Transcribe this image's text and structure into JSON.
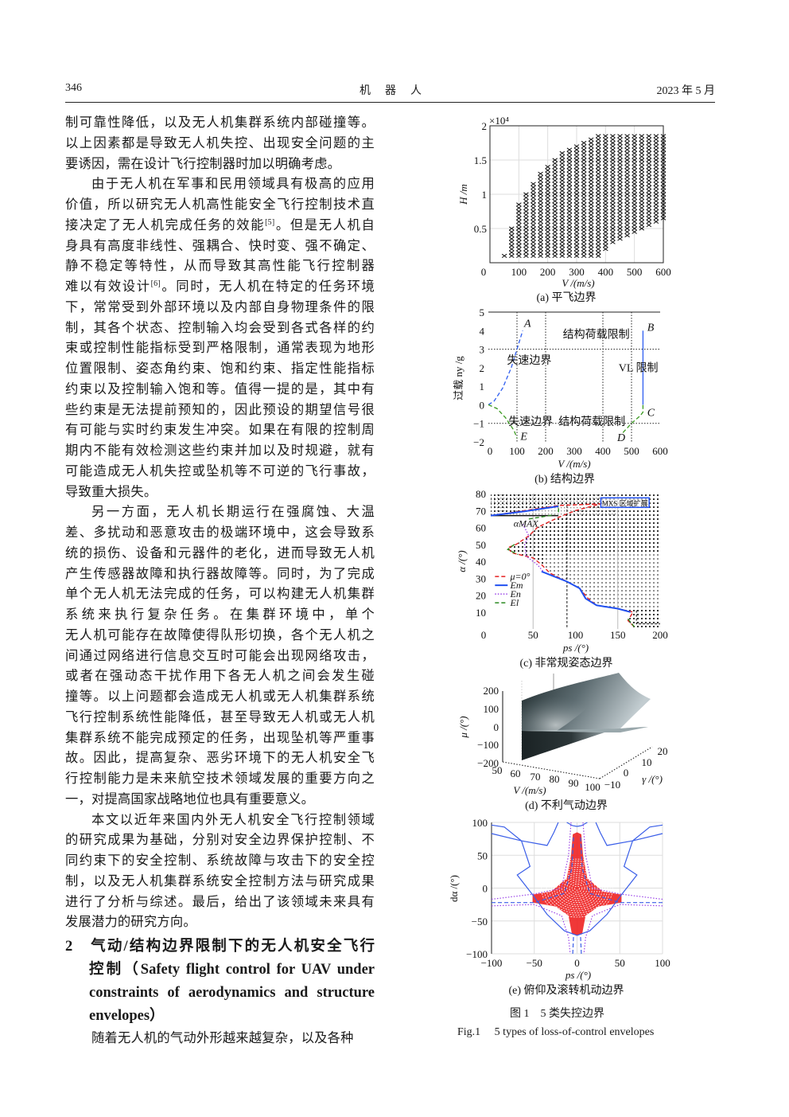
{
  "header": {
    "page_number": "346",
    "journal": "机　器　人",
    "date": "2023 年 5 月"
  },
  "body": {
    "lines": [
      {
        "t": "制可靠性降低，以及无人机集群系统内部碰撞等。"
      },
      {
        "t": "以上因素都是导致无人机失控、出现安全问题的主"
      },
      {
        "t": "要诱因，需在设计飞行控制器时加以明确考虑。",
        "last": true
      },
      {
        "t": "由于无人机在军事和民用领域具有极高的应用",
        "ind": true
      },
      {
        "t": "价值，所以研究无人机高性能安全飞行控制技术直"
      },
      {
        "t": "接决定了无人机完成任务的效能",
        "ref": "[5]",
        "t2": "。但是无人机自"
      },
      {
        "t": "身具有高度非线性、强耦合、快时变、强不确定、"
      },
      {
        "t": "静不稳定等特性，从而导致其高性能飞行控制器"
      },
      {
        "t": "难以有效设计",
        "ref": "[6]",
        "t2": "。同时，无人机在特定的任务环境"
      },
      {
        "t": "下，常常受到外部环境以及内部自身物理条件的限"
      },
      {
        "t": "制，其各个状态、控制输入均会受到各式各样的约"
      },
      {
        "t": "束或控制性能指标受到严格限制，通常表现为地形"
      },
      {
        "t": "位置限制、姿态角约束、饱和约束、指定性能指标"
      },
      {
        "t": "约束以及控制输入饱和等。值得一提的是，其中有"
      },
      {
        "t": "些约束是无法提前预知的，因此预设的期望信号很"
      },
      {
        "t": "有可能与实时约束发生冲突。如果在有限的控制周"
      },
      {
        "t": "期内不能有效检测这些约束并加以及时规避，就有"
      },
      {
        "t": "可能造成无人机失控或坠机等不可逆的飞行事故，"
      },
      {
        "t": "导致重大损失。",
        "last": true
      },
      {
        "t": "另一方面，无人机长期运行在强腐蚀、大温",
        "ind": true
      },
      {
        "t": "差、多扰动和恶意攻击的极端环境中，这会导致系"
      },
      {
        "t": "统的损伤、设备和元器件的老化，进而导致无人机"
      },
      {
        "t": "产生传感器故障和执行器故障等。同时，为了完成"
      },
      {
        "t": "单个无人机无法完成的任务，可以构建无人机集群"
      },
      {
        "t": "系统来执行复杂任务。在集群环境中，单个"
      },
      {
        "t": "无人机可能存在故障使得队形切换，各个无人机之"
      },
      {
        "t": "间通过网络进行信息交互时可能会出现网络攻击，"
      },
      {
        "t": "或者在强动态干扰作用下各无人机之间会发生碰"
      },
      {
        "t": "撞等。以上问题都会造成无人机或无人机集群系统"
      },
      {
        "t": "飞行控制系统性能降低，甚至导致无人机或无人机"
      },
      {
        "t": "集群系统不能完成预定的任务，出现坠机等严重事"
      },
      {
        "t": "故。因此，提高复杂、恶劣环境下的无人机安全飞"
      },
      {
        "t": "行控制能力是未来航空技术领域发展的重要方向之"
      },
      {
        "t": "一，对提高国家战略地位也具有重要意义。",
        "last": true
      },
      {
        "t": "本文以近年来国内外无人机安全飞行控制领域",
        "ind": true
      },
      {
        "t": "的研究成果为基础，分别对安全边界保护控制、不"
      },
      {
        "t": "同约束下的安全控制、系统故障与攻击下的安全控"
      },
      {
        "t": "制，以及无人机集群系统安全控制方法与研究成果"
      },
      {
        "t": "进行了分析与综述。最后，给出了该领域未来具有"
      },
      {
        "t": "发展潜力的研究方向。",
        "last": true
      }
    ],
    "section": {
      "number": "2",
      "lines": [
        "气动/结构边界限制下的无人机安全飞行",
        "控制（Safety flight control for UAV under",
        "constraints of aerodynamics and structure",
        "envelopes）"
      ]
    },
    "after_line": "随着无人机的气动外形越来越复杂，以及各种"
  },
  "figure": {
    "caption_cn": "图 1　5 类失控边界",
    "caption_en": "Fig.1　 5 types of loss-of-control envelopes"
  },
  "chart_data": [
    {
      "id": "a",
      "type": "scatter",
      "subtitle": "(a) 平飞边界",
      "xlabel": "V /(m/s)",
      "ylabel": "H /m",
      "y_multiplier": "×10⁴",
      "xlim": [
        0,
        600
      ],
      "ylim": [
        0,
        20000
      ],
      "xticks": [
        "0",
        "100",
        "200",
        "300",
        "400",
        "500",
        "600"
      ],
      "xtick_values": [
        0,
        100,
        200,
        300,
        400,
        500,
        600
      ],
      "yticks": [
        "0.5",
        "1",
        "1.5",
        "2"
      ],
      "ytick_values": [
        5000,
        10000,
        15000,
        20000
      ],
      "grid": true,
      "marker": "x",
      "h_step": 500,
      "columns": [
        {
          "V": 50,
          "Hmin": 1000,
          "Hmax": 1000
        },
        {
          "V": 75,
          "Hmin": 1000,
          "Hmax": 5000
        },
        {
          "V": 100,
          "Hmin": 1000,
          "Hmax": 8500
        },
        {
          "V": 125,
          "Hmin": 1000,
          "Hmax": 10000
        },
        {
          "V": 150,
          "Hmin": 1000,
          "Hmax": 11500
        },
        {
          "V": 175,
          "Hmin": 1000,
          "Hmax": 13000
        },
        {
          "V": 200,
          "Hmin": 1000,
          "Hmax": 14000
        },
        {
          "V": 225,
          "Hmin": 1000,
          "Hmax": 15000
        },
        {
          "V": 250,
          "Hmin": 1000,
          "Hmax": 16000
        },
        {
          "V": 275,
          "Hmin": 1000,
          "Hmax": 16500
        },
        {
          "V": 300,
          "Hmin": 1000,
          "Hmax": 17000
        },
        {
          "V": 325,
          "Hmin": 1000,
          "Hmax": 17500
        },
        {
          "V": 350,
          "Hmin": 1000,
          "Hmax": 18000
        },
        {
          "V": 375,
          "Hmin": 1000,
          "Hmax": 18500
        },
        {
          "V": 400,
          "Hmin": 2000,
          "Hmax": 18500
        },
        {
          "V": 425,
          "Hmin": 3000,
          "Hmax": 18500
        },
        {
          "V": 450,
          "Hmin": 3500,
          "Hmax": 18500
        },
        {
          "V": 475,
          "Hmin": 4000,
          "Hmax": 18500
        },
        {
          "V": 500,
          "Hmin": 4500,
          "Hmax": 18500
        },
        {
          "V": 525,
          "Hmin": 5000,
          "Hmax": 18500
        },
        {
          "V": 550,
          "Hmin": 5500,
          "Hmax": 18500
        },
        {
          "V": 575,
          "Hmin": 6000,
          "Hmax": 18500
        },
        {
          "V": 600,
          "Hmin": 6500,
          "Hmax": 18500
        }
      ]
    },
    {
      "id": "b",
      "type": "line",
      "subtitle": "(b) 结构边界",
      "xlabel": "V /(m/s)",
      "ylabel": "过载 ny /g",
      "xlim": [
        0,
        600
      ],
      "ylim": [
        -2,
        5
      ],
      "xticks": [
        "0",
        "100",
        "200",
        "300",
        "400",
        "500",
        "600"
      ],
      "xtick_values": [
        0,
        100,
        200,
        300,
        400,
        500,
        600
      ],
      "yticks": [
        "−2",
        "−1",
        "0",
        "1",
        "2",
        "3",
        "4",
        "5"
      ],
      "ytick_values": [
        -2,
        -1,
        0,
        1,
        2,
        3,
        4,
        5
      ],
      "grid_x": [
        100,
        200,
        400,
        500
      ],
      "grid_y": [
        -1,
        3
      ],
      "series": [
        {
          "color": "#2f5ef0",
          "dash": "dashed",
          "points": [
            [
              0,
              0
            ],
            [
              20,
              0.2
            ],
            [
              50,
              0.9
            ],
            [
              80,
              2.0
            ],
            [
              100,
              3.0
            ],
            [
              120,
              4.0
            ]
          ]
        },
        {
          "color": "#3a9a20",
          "dash": "dashed",
          "points": [
            [
              0,
              0
            ],
            [
              30,
              -0.2
            ],
            [
              60,
              -0.7
            ],
            [
              90,
              -1.4
            ],
            [
              100,
              -1.8
            ]
          ]
        },
        {
          "color": "#3a9a20",
          "dash": "dashed",
          "points": [
            [
              470,
              -1.5
            ],
            [
              500,
              -1.0
            ],
            [
              530,
              -0.6
            ],
            [
              540,
              -0.4
            ],
            [
              540,
              0
            ]
          ]
        },
        {
          "color": "#2f5ef0",
          "dash": "solid",
          "points": [
            [
              540,
              0
            ],
            [
              540,
              4.0
            ]
          ]
        }
      ],
      "annotations": [
        {
          "text": "A",
          "x": 125,
          "y": 4.2,
          "italic": true
        },
        {
          "text": "B",
          "x": 555,
          "y": 4.0,
          "italic": true
        },
        {
          "text": "C",
          "x": 555,
          "y": -0.6,
          "italic": true
        },
        {
          "text": "D",
          "x": 450,
          "y": -1.95,
          "italic": true
        },
        {
          "text": "E",
          "x": 112,
          "y": -1.9,
          "italic": true
        },
        {
          "text": "结构荷载限制",
          "x": 260,
          "y": 3.6
        },
        {
          "text": "失速边界",
          "x": 65,
          "y": 2.2
        },
        {
          "text": "VL 限制",
          "x": 455,
          "y": 1.8
        },
        {
          "text": "失速边界",
          "x": 70,
          "y": -1.1
        },
        {
          "text": "结构荷载限制",
          "x": 245,
          "y": -1.1
        }
      ]
    },
    {
      "id": "c",
      "type": "line",
      "subtitle": "(c) 非常规姿态边界",
      "xlabel": "ps /(°)",
      "ylabel": "α /(°)",
      "xlim": [
        0,
        200
      ],
      "ylim": [
        0,
        80
      ],
      "xticks": [
        "0",
        "50",
        "100",
        "150",
        "200"
      ],
      "xtick_values": [
        0,
        50,
        100,
        150,
        200
      ],
      "yticks": [
        "10",
        "20",
        "30",
        "40",
        "50",
        "60",
        "70",
        "80"
      ],
      "ytick_values": [
        10,
        20,
        30,
        40,
        50,
        60,
        70,
        80
      ],
      "box_label": "MXS 区域扩展",
      "alpha_max_label": "αMAX",
      "alpha_max": 67,
      "legend": [
        {
          "name": "μ=0°",
          "color": "#e52020",
          "dash": "dashed"
        },
        {
          "name": "Em",
          "color": "#2050f0",
          "dash": "solid"
        },
        {
          "name": "En",
          "color": "#9b45e8",
          "dash": "dotted"
        },
        {
          "name": "El",
          "color": "#2a8a20",
          "dash": "dashed"
        }
      ],
      "series": [
        {
          "name": "μ=0°",
          "color": "#e52020",
          "dash": "dashed",
          "points": [
            [
              0,
              67
            ],
            [
              40,
              70
            ],
            [
              80,
              73
            ],
            [
              130,
              74
            ],
            [
              100,
              70
            ],
            [
              80,
              66
            ],
            [
              55,
              60
            ],
            [
              45,
              55
            ],
            [
              30,
              50
            ],
            [
              20,
              48
            ],
            [
              25,
              45
            ],
            [
              50,
              42
            ],
            [
              60,
              38
            ],
            [
              70,
              33
            ],
            [
              90,
              28
            ],
            [
              105,
              24
            ],
            [
              115,
              18
            ],
            [
              125,
              14
            ],
            [
              150,
              12
            ],
            [
              168,
              10
            ],
            [
              162,
              5
            ],
            [
              170,
              1
            ]
          ]
        },
        {
          "name": "Em",
          "color": "#2050f0",
          "dash": "solid",
          "points": [
            [
              0,
              67
            ],
            [
              40,
              69.5
            ],
            [
              80,
              72.5
            ]
          ]
        },
        {
          "name": "Em",
          "color": "#2050f0",
          "dash": "solid",
          "points": [
            [
              60,
              34
            ],
            [
              90,
              28
            ],
            [
              105,
              24
            ],
            [
              112,
              18
            ],
            [
              125,
              14
            ],
            [
              150,
              12
            ],
            [
              165,
              10
            ]
          ]
        },
        {
          "name": "En",
          "color": "#9b45e8",
          "dash": "dotted",
          "points": [
            [
              38,
              62
            ],
            [
              45,
              55
            ],
            [
              40,
              50
            ],
            [
              42,
              43
            ],
            [
              55,
              38
            ],
            [
              62,
              34
            ]
          ]
        },
        {
          "name": "El",
          "color": "#2a8a20",
          "dash": "dashed",
          "points": [
            [
              45,
              65
            ],
            [
              75,
              67.5
            ]
          ]
        },
        {
          "name": "El",
          "color": "#2a8a20",
          "dash": "dashed",
          "points": [
            [
              28,
              50
            ],
            [
              20,
              47
            ],
            [
              32,
              44
            ]
          ]
        },
        {
          "name": "El",
          "color": "#2a8a20",
          "dash": "dashed",
          "points": [
            [
              80,
              69
            ],
            [
              80,
              73
            ]
          ]
        },
        {
          "name": "El",
          "color": "#2a8a20",
          "dash": "dashed",
          "points": [
            [
              162,
              6
            ],
            [
              170,
              1
            ]
          ]
        }
      ]
    },
    {
      "id": "d",
      "type": "surface",
      "subtitle": "(d) 不利气动边界",
      "xlabel": "V /(m/s)",
      "ylabel": "γ /(°)",
      "zlabel": "μ /(°)",
      "xticks": [
        "50",
        "60",
        "70",
        "80",
        "90",
        "100"
      ],
      "yticks": [
        "−10",
        "0",
        "10",
        "20"
      ],
      "zticks": [
        "−200",
        "−100",
        "0",
        "100",
        "200"
      ]
    },
    {
      "id": "e",
      "type": "line",
      "subtitle": "(e) 俯仰及滚转机动边界",
      "xlabel": "ps /(°)",
      "ylabel": "dα /(°)",
      "xlim": [
        -100,
        100
      ],
      "ylim": [
        -100,
        100
      ],
      "xticks": [
        "−100",
        "−50",
        "0",
        "50",
        "100"
      ],
      "xtick_values": [
        -100,
        -50,
        0,
        50,
        100
      ],
      "yticks": [
        "−100",
        "−50",
        "0",
        "50",
        "100"
      ],
      "ytick_values": [
        -100,
        -50,
        0,
        50,
        100
      ],
      "grid": true,
      "mirror_x": true,
      "series": [
        {
          "color": "#3a5ee8",
          "dash": "solid",
          "points": [
            [
              -100,
              83
            ],
            [
              -65,
              72
            ],
            [
              -35,
              65
            ],
            [
              -27,
              85
            ],
            [
              -22,
              100
            ]
          ]
        },
        {
          "color": "#3a5ee8",
          "dash": "solid",
          "points": [
            [
              -100,
              96
            ],
            [
              -85,
              93
            ],
            [
              -65,
              72
            ],
            [
              -55,
              33
            ],
            [
              -70,
              20
            ],
            [
              -52,
              -10
            ],
            [
              -35,
              -40
            ],
            [
              -15,
              -65
            ],
            [
              0,
              -72
            ]
          ]
        },
        {
          "color": "#3a5ee8",
          "dash": "solid",
          "points": [
            [
              -12,
              100
            ],
            [
              -5,
              95
            ],
            [
              0,
              94
            ]
          ]
        },
        {
          "color": "#3a5ee8",
          "dash": "dashed",
          "points": [
            [
              -100,
              -22
            ],
            [
              -50,
              -22
            ],
            [
              -15,
              -8
            ],
            [
              -6,
              30
            ],
            [
              -4,
              80
            ]
          ]
        },
        {
          "color": "#3a5ee8",
          "dash": "dashed",
          "points": [
            [
              -5,
              -100
            ],
            [
              -4,
              -70
            ]
          ]
        },
        {
          "color": "#9b45e8",
          "dash": "dotted",
          "points": [
            [
              -100,
              -17
            ],
            [
              -50,
              -9
            ],
            [
              -18,
              0
            ],
            [
              -10,
              50
            ],
            [
              -7,
              100
            ]
          ]
        },
        {
          "color": "#9b45e8",
          "dash": "dotted",
          "points": [
            [
              -100,
              -27
            ],
            [
              -50,
              -25
            ],
            [
              -18,
              -42
            ],
            [
              -10,
              -75
            ],
            [
              -8,
              -100
            ]
          ]
        }
      ],
      "region": {
        "color": "#ee2222",
        "points": [
          [
            0,
            85
          ],
          [
            -5,
            82
          ],
          [
            -7,
            50
          ],
          [
            -12,
            15
          ],
          [
            -30,
            -5
          ],
          [
            -52,
            -10
          ],
          [
            -52,
            -22
          ],
          [
            -25,
            -28
          ],
          [
            -10,
            -42
          ],
          [
            -6,
            -70
          ],
          [
            0,
            -72
          ]
        ]
      }
    }
  ]
}
